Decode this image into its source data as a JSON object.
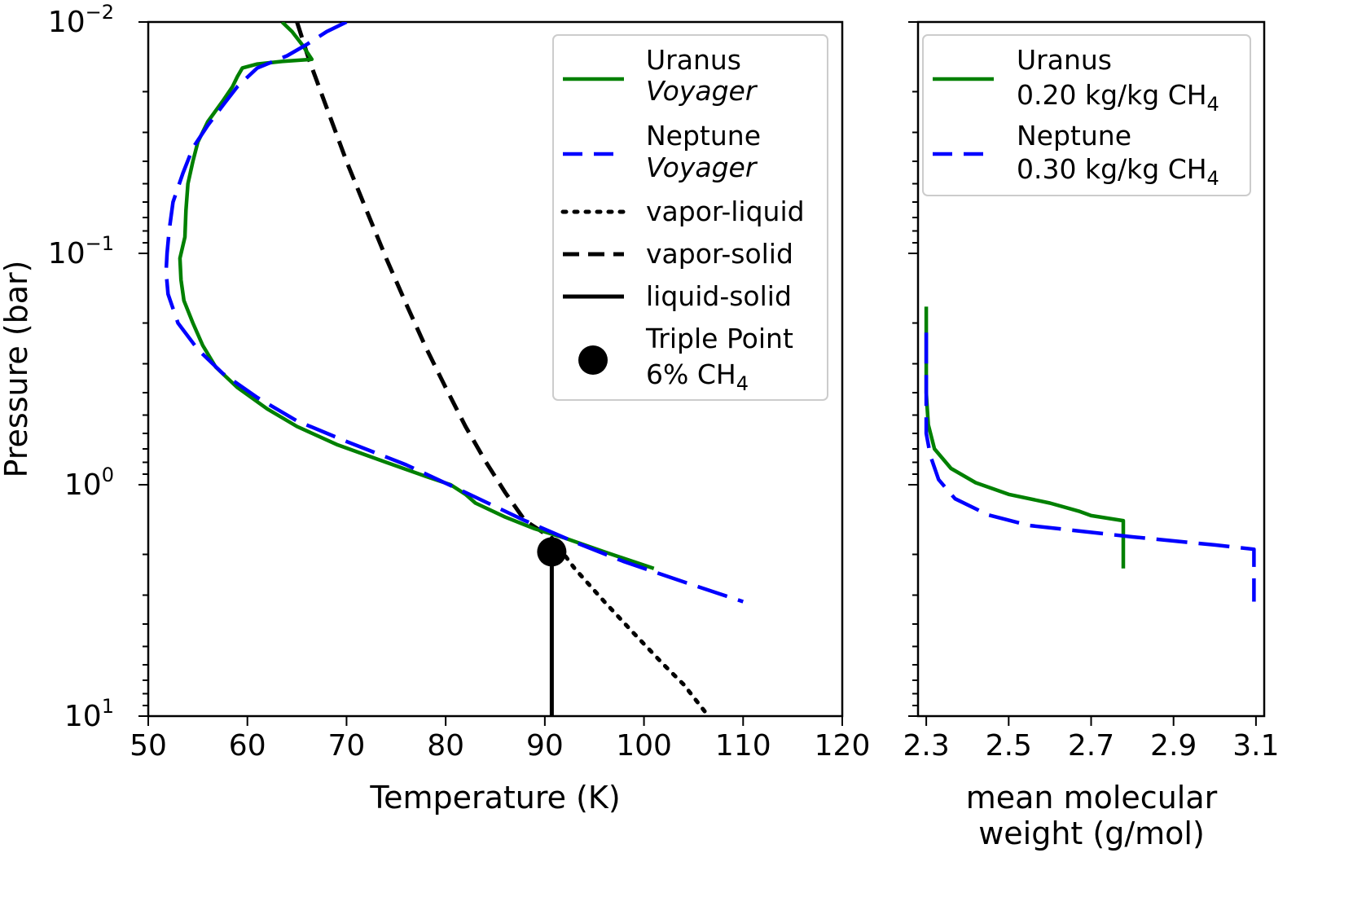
{
  "chart_data": [
    {
      "type": "line",
      "xlabel": "Temperature (K)",
      "ylabel": "Pressure (bar)",
      "xlim": [
        50,
        120
      ],
      "ylim": [
        10,
        0.01
      ],
      "yscale": "log",
      "x_ticks": [
        "50",
        "60",
        "70",
        "80",
        "90",
        "100",
        "110",
        "120"
      ],
      "y_ticks": [
        {
          "value": 0.01,
          "base": "10",
          "exp": "−2"
        },
        {
          "value": 0.1,
          "base": "10",
          "exp": "−1"
        },
        {
          "value": 1,
          "base": "10",
          "exp": "0"
        },
        {
          "value": 10,
          "base": "10",
          "exp": "1"
        }
      ],
      "legend_position": "top-right",
      "series": [
        {
          "name": "Uranus",
          "name2": "Voyager",
          "color": "#008000",
          "style": "solid",
          "points": [
            [
              63.5,
              0.01
            ],
            [
              64.5,
              0.011
            ],
            [
              65.5,
              0.0125
            ],
            [
              66.5,
              0.0145
            ],
            [
              63.5,
              0.0148
            ],
            [
              61,
              0.0152
            ],
            [
              59.5,
              0.0158
            ],
            [
              59,
              0.0172
            ],
            [
              58.5,
              0.019
            ],
            [
              57.5,
              0.022
            ],
            [
              56,
              0.027
            ],
            [
              55,
              0.033
            ],
            [
              54.5,
              0.04
            ],
            [
              54,
              0.05
            ],
            [
              53.8,
              0.065
            ],
            [
              53.7,
              0.085
            ],
            [
              53.2,
              0.105
            ],
            [
              53.3,
              0.13
            ],
            [
              53.6,
              0.16
            ],
            [
              54.5,
              0.2
            ],
            [
              55.5,
              0.25
            ],
            [
              56.8,
              0.31
            ],
            [
              59,
              0.38
            ],
            [
              62,
              0.47
            ],
            [
              65,
              0.56
            ],
            [
              69,
              0.67
            ],
            [
              74,
              0.8
            ],
            [
              78,
              0.92
            ],
            [
              80.5,
              1.0
            ],
            [
              82,
              1.1
            ],
            [
              83,
              1.2
            ],
            [
              86,
              1.38
            ],
            [
              89,
              1.55
            ],
            [
              92,
              1.7
            ],
            [
              96,
              1.95
            ],
            [
              101,
              2.3
            ]
          ]
        },
        {
          "name": "Neptune",
          "name2": "Voyager",
          "color": "#0000ff",
          "style": "dashed",
          "points": [
            [
              70,
              0.01
            ],
            [
              68,
              0.011
            ],
            [
              66,
              0.0125
            ],
            [
              64,
              0.014
            ],
            [
              61,
              0.0158
            ],
            [
              59,
              0.019
            ],
            [
              57.5,
              0.023
            ],
            [
              56,
              0.028
            ],
            [
              54.5,
              0.035
            ],
            [
              53.5,
              0.045
            ],
            [
              52.5,
              0.06
            ],
            [
              52.1,
              0.08
            ],
            [
              51.9,
              0.1
            ],
            [
              51.8,
              0.12
            ],
            [
              52,
              0.15
            ],
            [
              53,
              0.2
            ],
            [
              55,
              0.26
            ],
            [
              57.5,
              0.33
            ],
            [
              61,
              0.42
            ],
            [
              65,
              0.53
            ],
            [
              70,
              0.65
            ],
            [
              76,
              0.82
            ],
            [
              82,
              1.08
            ],
            [
              88,
              1.43
            ],
            [
              93,
              1.77
            ],
            [
              98,
              2.15
            ],
            [
              104,
              2.63
            ],
            [
              110,
              3.2
            ]
          ]
        },
        {
          "name": "vapor-liquid",
          "color": "#000000",
          "style": "dotted",
          "points": [
            [
              90.7,
              1.7
            ],
            [
              93,
              2.3
            ],
            [
              96,
              3.2
            ],
            [
              99,
              4.4
            ],
            [
              102,
              6.0
            ],
            [
              104,
              7.3
            ],
            [
              106.5,
              10
            ]
          ]
        },
        {
          "name": "vapor-solid",
          "color": "#000000",
          "style": "dashed",
          "points": [
            [
              65,
              0.01
            ],
            [
              66.2,
              0.0145
            ],
            [
              68,
              0.0235
            ],
            [
              70,
              0.04
            ],
            [
              72,
              0.065
            ],
            [
              74,
              0.105
            ],
            [
              76,
              0.165
            ],
            [
              78,
              0.255
            ],
            [
              80,
              0.38
            ],
            [
              82,
              0.56
            ],
            [
              84,
              0.79
            ],
            [
              86,
              1.08
            ],
            [
              88,
              1.43
            ],
            [
              90.7,
              1.7
            ]
          ]
        },
        {
          "name": "liquid-solid",
          "color": "#000000",
          "style": "solid",
          "points": [
            [
              90.7,
              1.95
            ],
            [
              90.7,
              10
            ]
          ]
        }
      ],
      "markers": [
        {
          "name": "Triple Point",
          "name2": "6% CH",
          "sub": "4",
          "x": 90.7,
          "y": 1.95,
          "color": "#000000"
        }
      ]
    },
    {
      "type": "line",
      "xlabel": "mean molecular weight (g/mol)",
      "xlabel_line1": "mean molecular",
      "xlabel_line2": "weight (g/mol)",
      "xlim": [
        2.28,
        3.12
      ],
      "ylim": [
        10,
        0.01
      ],
      "yscale": "log",
      "x_ticks": [
        "2.3",
        "2.5",
        "2.7",
        "2.9",
        "3.1"
      ],
      "legend_position": "top-right",
      "series": [
        {
          "name": "Uranus",
          "name2": "0.20 kg/kg CH",
          "sub": "4",
          "color": "#008000",
          "style": "solid",
          "points": [
            [
              2.3,
              0.17
            ],
            [
              2.3,
              0.4
            ],
            [
              2.305,
              0.55
            ],
            [
              2.32,
              0.7
            ],
            [
              2.36,
              0.85
            ],
            [
              2.42,
              0.98
            ],
            [
              2.5,
              1.1
            ],
            [
              2.6,
              1.2
            ],
            [
              2.67,
              1.3
            ],
            [
              2.7,
              1.36
            ],
            [
              2.778,
              1.43
            ],
            [
              2.778,
              2.3
            ]
          ]
        },
        {
          "name": "Neptune",
          "name2": "0.30 kg/kg CH",
          "sub": "4",
          "color": "#0000ff",
          "style": "dashed",
          "points": [
            [
              2.3,
              0.22
            ],
            [
              2.3,
              0.6
            ],
            [
              2.31,
              0.75
            ],
            [
              2.33,
              0.95
            ],
            [
              2.37,
              1.15
            ],
            [
              2.45,
              1.35
            ],
            [
              2.55,
              1.5
            ],
            [
              2.8,
              1.68
            ],
            [
              3.0,
              1.82
            ],
            [
              3.095,
              1.9
            ],
            [
              3.095,
              3.2
            ]
          ]
        }
      ]
    }
  ]
}
